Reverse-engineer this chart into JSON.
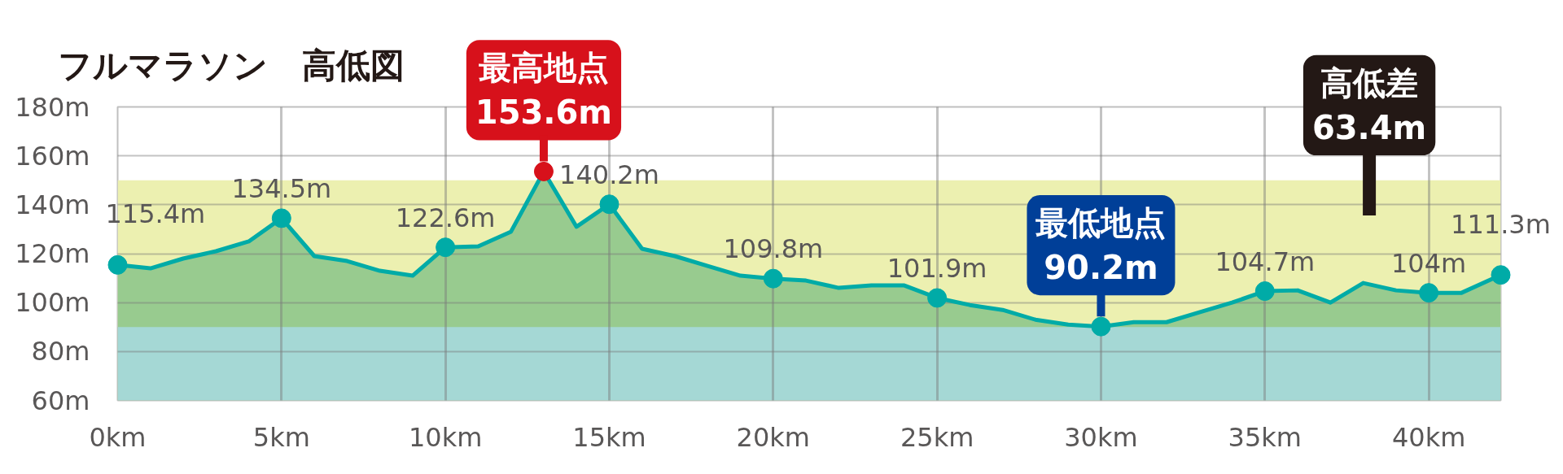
{
  "chart_data": {
    "type": "area",
    "title": "フルマラソン　高低図",
    "xlim": [
      0,
      42.195
    ],
    "ylim": [
      60,
      180
    ],
    "xticks": [
      {
        "value": 0,
        "label": "0km"
      },
      {
        "value": 5,
        "label": "5km"
      },
      {
        "value": 10,
        "label": "10km"
      },
      {
        "value": 15,
        "label": "15km"
      },
      {
        "value": 20,
        "label": "20km"
      },
      {
        "value": 25,
        "label": "25km"
      },
      {
        "value": 30,
        "label": "30km"
      },
      {
        "value": 35,
        "label": "35km"
      },
      {
        "value": 40,
        "label": "40km"
      }
    ],
    "yticks": [
      {
        "value": 60,
        "label": "60m"
      },
      {
        "value": 80,
        "label": "80m"
      },
      {
        "value": 100,
        "label": "100m"
      },
      {
        "value": 120,
        "label": "120m"
      },
      {
        "value": 140,
        "label": "140m"
      },
      {
        "value": 160,
        "label": "160m"
      },
      {
        "value": 180,
        "label": "180m"
      }
    ],
    "grid": true,
    "bands": [
      {
        "axis": "y",
        "from": 90,
        "to": 150,
        "color": "#ecf0b0"
      },
      {
        "axis": "y",
        "from": 60,
        "to": 90,
        "color": "#a5d8d5"
      }
    ],
    "series": [
      {
        "color": "#98cb8f",
        "x": [
          0,
          1,
          2,
          3,
          4,
          5,
          6,
          7,
          8,
          9,
          10,
          11,
          12,
          13,
          14,
          15,
          16,
          17,
          18,
          19,
          20,
          21,
          22,
          23,
          24,
          25,
          26,
          27,
          28,
          29,
          30,
          31,
          32,
          33,
          34,
          35,
          36,
          37,
          38,
          39,
          40,
          41,
          42.195
        ],
        "values": [
          115.4,
          114,
          118,
          121,
          125,
          134.5,
          119,
          117,
          113,
          111,
          122.6,
          123,
          129,
          153.6,
          131,
          140.2,
          122,
          119,
          115,
          111,
          109.8,
          109,
          106,
          107,
          107,
          101.9,
          99,
          97,
          93,
          91,
          90.2,
          92,
          92,
          96,
          100,
          104.7,
          105,
          100,
          108,
          105,
          104,
          104,
          111.3
        ]
      },
      {
        "type": "scatter",
        "color": "#00aba7",
        "x": [
          0,
          5,
          10,
          15,
          20,
          25,
          30,
          35,
          40,
          42.195
        ],
        "values": [
          115.4,
          134.5,
          122.6,
          140.2,
          109.8,
          101.9,
          90.2,
          104.7,
          104,
          111.3
        ],
        "value_labels": [
          "115.4m",
          "134.5m",
          "122.6m",
          "140.2m",
          "109.8m",
          "101.9m",
          null,
          "104.7m",
          "104m",
          "111.3m"
        ]
      },
      {
        "type": "scatter",
        "color": "#d7111b",
        "x": [
          13
        ],
        "values": [
          153.6
        ]
      }
    ],
    "annotations": [
      {
        "text": "最高地点\n153.6m",
        "x": 13,
        "y": 153.6
      },
      {
        "text": "最低地点\n90.2m",
        "x": 30,
        "y": 90.2
      },
      "高低差\n63.4m"
    ]
  }
}
